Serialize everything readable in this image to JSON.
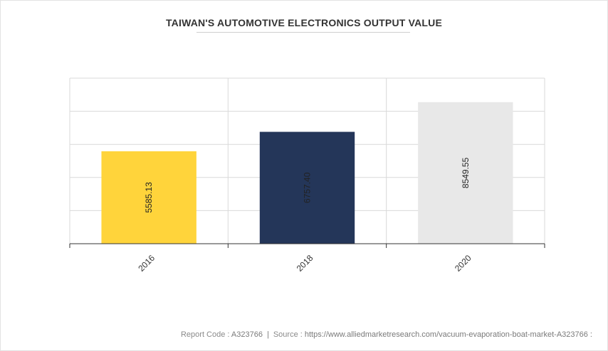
{
  "chart_data": {
    "type": "bar",
    "title": "TAIWAN'S AUTOMOTIVE ELECTRONICS OUTPUT VALUE",
    "categories": [
      "2016",
      "2018",
      "2020"
    ],
    "values": [
      5585.13,
      6757.4,
      8549.55
    ],
    "value_labels": [
      "5585.13",
      "6757.40",
      "8549.55"
    ],
    "colors": [
      "#ffd43b",
      "#243659",
      "#e8e8e8"
    ],
    "ylim": [
      0,
      10000
    ],
    "grid": true,
    "xlabel": "",
    "ylabel": ""
  },
  "footer": {
    "report_code_label": "Report Code : ",
    "report_code": "A323766",
    "separator": "|",
    "source_label": "Source : ",
    "source": "https://www.alliedmarketresearch.com/vacuum-evaporation-boat-market-A323766 :"
  }
}
